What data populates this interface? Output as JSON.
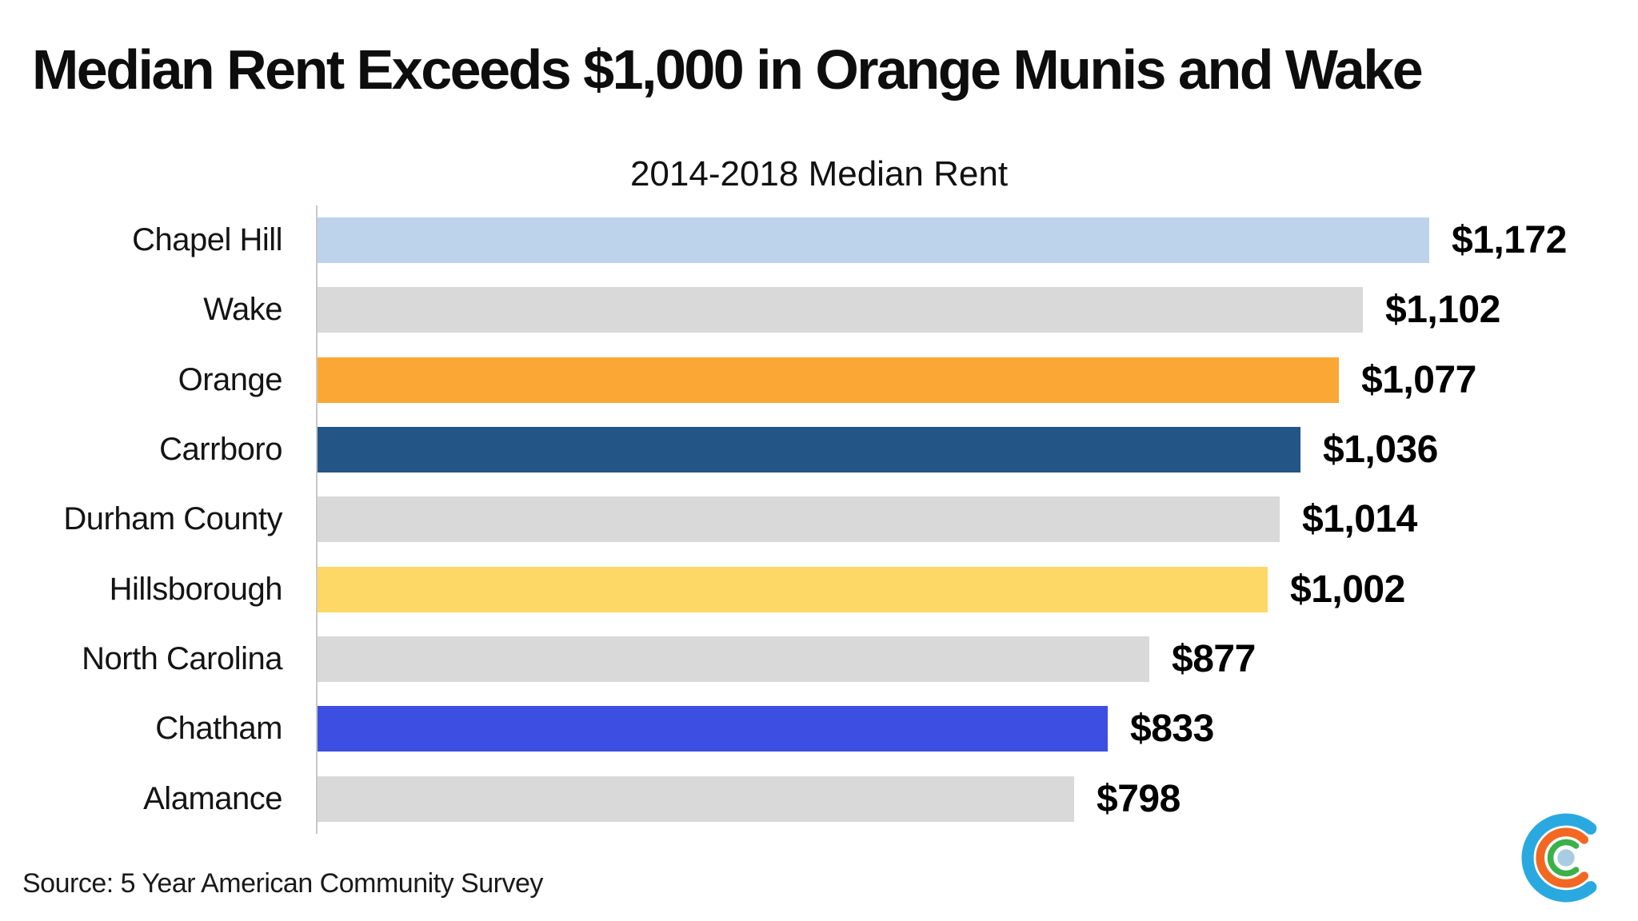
{
  "header": {
    "title": "Median Rent Exceeds $1,000 in Orange Munis and Wake"
  },
  "chart_data": {
    "type": "bar",
    "orientation": "horizontal",
    "title": "2014-2018 Median Rent",
    "categories": [
      "Chapel Hill",
      "Wake",
      "Orange",
      "Carrboro",
      "Durham County",
      "Hillsborough",
      "North Carolina",
      "Chatham",
      "Alamance"
    ],
    "values": [
      1172,
      1102,
      1077,
      1036,
      1014,
      1002,
      877,
      833,
      798
    ],
    "value_labels": [
      "$1,172",
      "$1,102",
      "$1,077",
      "$1,036",
      "$1,014",
      "$1,002",
      "$877",
      "$833",
      "$798"
    ],
    "bar_colors": [
      "#BDD3EB",
      "#D9D9D9",
      "#FAA736",
      "#235587",
      "#D9D9D9",
      "#FDD867",
      "#D9D9D9",
      "#3C4FE2",
      "#D9D9D9"
    ],
    "xlabel": "",
    "ylabel": "",
    "xlim": [
      0,
      1390
    ],
    "grid": false,
    "legend": "none",
    "value_label_position": "end-of-bar",
    "axis_line_color": "#c8c8c8"
  },
  "footer": {
    "source": "Source: 5 Year American Community Survey"
  },
  "logo": {
    "name": "concentric-c-logo",
    "outer_color": "#29A9E0",
    "middle_color": "#F26822",
    "inner_color": "#3CB049",
    "dot_color": "#A9CCE3"
  }
}
